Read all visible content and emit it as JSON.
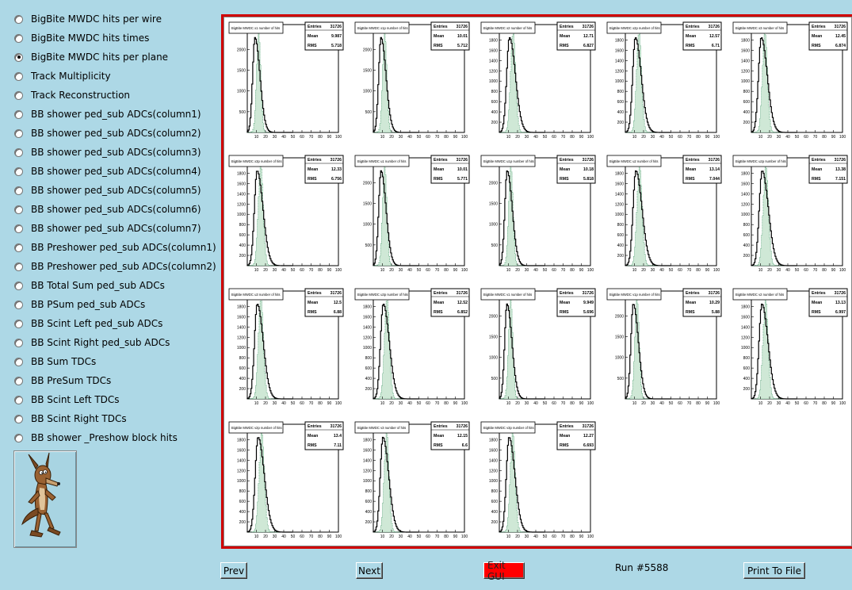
{
  "sidebar": {
    "options": [
      {
        "label": "BigBite MWDC hits per wire",
        "selected": false
      },
      {
        "label": "BigBite MWDC hits times",
        "selected": false
      },
      {
        "label": "BigBite MWDC hits per plane",
        "selected": true
      },
      {
        "label": "Track Multiplicity",
        "selected": false
      },
      {
        "label": "Track Reconstruction",
        "selected": false
      },
      {
        "label": "BB shower ped_sub ADCs(column1)",
        "selected": false
      },
      {
        "label": "BB shower ped_sub ADCs(column2)",
        "selected": false
      },
      {
        "label": "BB shower ped_sub ADCs(column3)",
        "selected": false
      },
      {
        "label": "BB shower ped_sub ADCs(column4)",
        "selected": false
      },
      {
        "label": "BB shower ped_sub ADCs(column5)",
        "selected": false
      },
      {
        "label": "BB shower ped_sub ADCs(column6)",
        "selected": false
      },
      {
        "label": "BB shower ped_sub ADCs(column7)",
        "selected": false
      },
      {
        "label": "BB Preshower ped_sub ADCs(column1)",
        "selected": false
      },
      {
        "label": "BB Preshower ped_sub ADCs(column2)",
        "selected": false
      },
      {
        "label": "BB Total Sum ped_sub ADCs",
        "selected": false
      },
      {
        "label": "BB PSum ped_sub ADCs",
        "selected": false
      },
      {
        "label": "BB Scint Left ped_sub ADCs",
        "selected": false
      },
      {
        "label": "BB Scint Right ped_sub ADCs",
        "selected": false
      },
      {
        "label": "BB Sum TDCs",
        "selected": false
      },
      {
        "label": "BB PreSum TDCs",
        "selected": false
      },
      {
        "label": "BB Scint Left TDCs",
        "selected": false
      },
      {
        "label": "BB Scint Right TDCs",
        "selected": false
      },
      {
        "label": "BB shower _Preshow block hits",
        "selected": false
      }
    ],
    "mascot_icon": "coyote-cartoon-icon"
  },
  "buttons": {
    "prev": "Prev",
    "next": "Next",
    "exit": "Exit GUI",
    "print": "Print To File"
  },
  "run_label": "Run #5588",
  "colors": {
    "background": "#add8e6",
    "frame": "#d00000",
    "exit_button": "#ff0000",
    "hist_fill": "#2e8b57"
  },
  "chart_data": [
    {
      "type": "bar",
      "title": "BigBite MWDC x1 number of hits",
      "entries": "31726",
      "mean": "9.987",
      "rms": "5.718",
      "xlim": [
        0,
        100
      ],
      "ylim": [
        0,
        2600
      ],
      "yticks": [
        500,
        1000,
        1500,
        2000,
        2500
      ],
      "xticks": [
        10,
        20,
        30,
        40,
        50,
        60,
        70,
        80,
        90,
        100
      ]
    },
    {
      "type": "bar",
      "title": "BigBite MWDC x1p number of hits",
      "entries": "31726",
      "mean": "10.01",
      "rms": "5.712",
      "xlim": [
        0,
        100
      ],
      "ylim": [
        0,
        2600
      ],
      "yticks": [
        500,
        1000,
        1500,
        2000,
        2500
      ],
      "xticks": [
        10,
        20,
        30,
        40,
        50,
        60,
        70,
        80,
        90,
        100
      ]
    },
    {
      "type": "bar",
      "title": "BigBite MWDC x2 number of hits",
      "entries": "31726",
      "mean": "12.71",
      "rms": "6.827",
      "xlim": [
        0,
        100
      ],
      "ylim": [
        0,
        2100
      ],
      "yticks": [
        200,
        400,
        600,
        800,
        1000,
        1200,
        1400,
        1600,
        1800,
        2000
      ],
      "xticks": [
        10,
        20,
        30,
        40,
        50,
        60,
        70,
        80,
        90,
        100
      ]
    },
    {
      "type": "bar",
      "title": "BigBite MWDC x2p number of hits",
      "entries": "31726",
      "mean": "12.57",
      "rms": "6.71",
      "xlim": [
        0,
        100
      ],
      "ylim": [
        0,
        2100
      ],
      "yticks": [
        200,
        400,
        600,
        800,
        1000,
        1200,
        1400,
        1600,
        1800,
        2000
      ],
      "xticks": [
        10,
        20,
        30,
        40,
        50,
        60,
        70,
        80,
        90,
        100
      ]
    },
    {
      "type": "bar",
      "title": "BigBite MWDC x3 number of hits",
      "entries": "31726",
      "mean": "12.45",
      "rms": "6.874",
      "xlim": [
        0,
        100
      ],
      "ylim": [
        0,
        2100
      ],
      "yticks": [
        200,
        400,
        600,
        800,
        1000,
        1200,
        1400,
        1600,
        1800,
        2000
      ],
      "xticks": [
        10,
        20,
        30,
        40,
        50,
        60,
        70,
        80,
        90,
        100
      ]
    },
    {
      "type": "bar",
      "title": "BigBite MWDC x3p number of hits",
      "entries": "31726",
      "mean": "12.33",
      "rms": "6.756",
      "xlim": [
        0,
        100
      ],
      "ylim": [
        0,
        2100
      ],
      "yticks": [
        200,
        400,
        600,
        800,
        1000,
        1200,
        1400,
        1600,
        1800,
        2000
      ],
      "xticks": [
        10,
        20,
        30,
        40,
        50,
        60,
        70,
        80,
        90,
        100
      ]
    },
    {
      "type": "bar",
      "title": "BigBite MWDC u1 number of hits",
      "entries": "31726",
      "mean": "10.01",
      "rms": "5.771",
      "xlim": [
        0,
        100
      ],
      "ylim": [
        0,
        2600
      ],
      "yticks": [
        500,
        1000,
        1500,
        2000,
        2500
      ],
      "xticks": [
        10,
        20,
        30,
        40,
        50,
        60,
        70,
        80,
        90,
        100
      ]
    },
    {
      "type": "bar",
      "title": "BigBite MWDC u1p number of hits",
      "entries": "31726",
      "mean": "10.18",
      "rms": "5.818",
      "xlim": [
        0,
        100
      ],
      "ylim": [
        0,
        2600
      ],
      "yticks": [
        500,
        1000,
        1500,
        2000,
        2500
      ],
      "xticks": [
        10,
        20,
        30,
        40,
        50,
        60,
        70,
        80,
        90,
        100
      ]
    },
    {
      "type": "bar",
      "title": "BigBite MWDC u2 number of hits",
      "entries": "31726",
      "mean": "13.14",
      "rms": "7.044",
      "xlim": [
        0,
        100
      ],
      "ylim": [
        0,
        2100
      ],
      "yticks": [
        200,
        400,
        600,
        800,
        1000,
        1200,
        1400,
        1600,
        1800,
        2000
      ],
      "xticks": [
        10,
        20,
        30,
        40,
        50,
        60,
        70,
        80,
        90,
        100
      ]
    },
    {
      "type": "bar",
      "title": "BigBite MWDC u2p number of hits",
      "entries": "31726",
      "mean": "13.38",
      "rms": "7.151",
      "xlim": [
        0,
        100
      ],
      "ylim": [
        0,
        2100
      ],
      "yticks": [
        200,
        400,
        600,
        800,
        1000,
        1200,
        1400,
        1600,
        1800,
        2000
      ],
      "xticks": [
        10,
        20,
        30,
        40,
        50,
        60,
        70,
        80,
        90,
        100
      ]
    },
    {
      "type": "bar",
      "title": "BigBite MWDC u3 number of hits",
      "entries": "31726",
      "mean": "12.5",
      "rms": "6.88",
      "xlim": [
        0,
        100
      ],
      "ylim": [
        0,
        2100
      ],
      "yticks": [
        200,
        400,
        600,
        800,
        1000,
        1200,
        1400,
        1600,
        1800,
        2000
      ],
      "xticks": [
        10,
        20,
        30,
        40,
        50,
        60,
        70,
        80,
        90,
        100
      ]
    },
    {
      "type": "bar",
      "title": "BigBite MWDC u3p number of hits",
      "entries": "31726",
      "mean": "12.52",
      "rms": "6.852",
      "xlim": [
        0,
        100
      ],
      "ylim": [
        0,
        2100
      ],
      "yticks": [
        200,
        400,
        600,
        800,
        1000,
        1200,
        1400,
        1600,
        1800,
        2000
      ],
      "xticks": [
        10,
        20,
        30,
        40,
        50,
        60,
        70,
        80,
        90,
        100
      ]
    },
    {
      "type": "bar",
      "title": "BigBite MWDC v1 number of hits",
      "entries": "31726",
      "mean": "9.949",
      "rms": "5.696",
      "xlim": [
        0,
        100
      ],
      "ylim": [
        0,
        2600
      ],
      "yticks": [
        500,
        1000,
        1500,
        2000,
        2500
      ],
      "xticks": [
        10,
        20,
        30,
        40,
        50,
        60,
        70,
        80,
        90,
        100
      ]
    },
    {
      "type": "bar",
      "title": "BigBite MWDC v1p number of hits",
      "entries": "31726",
      "mean": "10.29",
      "rms": "5.88",
      "xlim": [
        0,
        100
      ],
      "ylim": [
        0,
        2600
      ],
      "yticks": [
        500,
        1000,
        1500,
        2000,
        2500
      ],
      "xticks": [
        10,
        20,
        30,
        40,
        50,
        60,
        70,
        80,
        90,
        100
      ]
    },
    {
      "type": "bar",
      "title": "BigBite MWDC v2 number of hits",
      "entries": "31726",
      "mean": "13.13",
      "rms": "6.997",
      "xlim": [
        0,
        100
      ],
      "ylim": [
        0,
        2100
      ],
      "yticks": [
        200,
        400,
        600,
        800,
        1000,
        1200,
        1400,
        1600,
        1800,
        2000
      ],
      "xticks": [
        10,
        20,
        30,
        40,
        50,
        60,
        70,
        80,
        90,
        100
      ]
    },
    {
      "type": "bar",
      "title": "BigBite MWDC v2p number of hits",
      "entries": "31726",
      "mean": "13.4",
      "rms": "7.11",
      "xlim": [
        0,
        100
      ],
      "ylim": [
        0,
        2100
      ],
      "yticks": [
        200,
        400,
        600,
        800,
        1000,
        1200,
        1400,
        1600,
        1800,
        2000
      ],
      "xticks": [
        10,
        20,
        30,
        40,
        50,
        60,
        70,
        80,
        90,
        100
      ]
    },
    {
      "type": "bar",
      "title": "BigBite MWDC v3 number of hits",
      "entries": "31726",
      "mean": "12.15",
      "rms": "6.6",
      "xlim": [
        0,
        100
      ],
      "ylim": [
        0,
        2100
      ],
      "yticks": [
        200,
        400,
        600,
        800,
        1000,
        1200,
        1400,
        1600,
        1800,
        2000
      ],
      "xticks": [
        10,
        20,
        30,
        40,
        50,
        60,
        70,
        80,
        90,
        100
      ]
    },
    {
      "type": "bar",
      "title": "BigBite MWDC v3p number of hits",
      "entries": "31726",
      "mean": "12.27",
      "rms": "6.693",
      "xlim": [
        0,
        100
      ],
      "ylim": [
        0,
        2100
      ],
      "yticks": [
        200,
        400,
        600,
        800,
        1000,
        1200,
        1400,
        1600,
        1800,
        2000
      ],
      "xticks": [
        10,
        20,
        30,
        40,
        50,
        60,
        70,
        80,
        90,
        100
      ]
    }
  ]
}
